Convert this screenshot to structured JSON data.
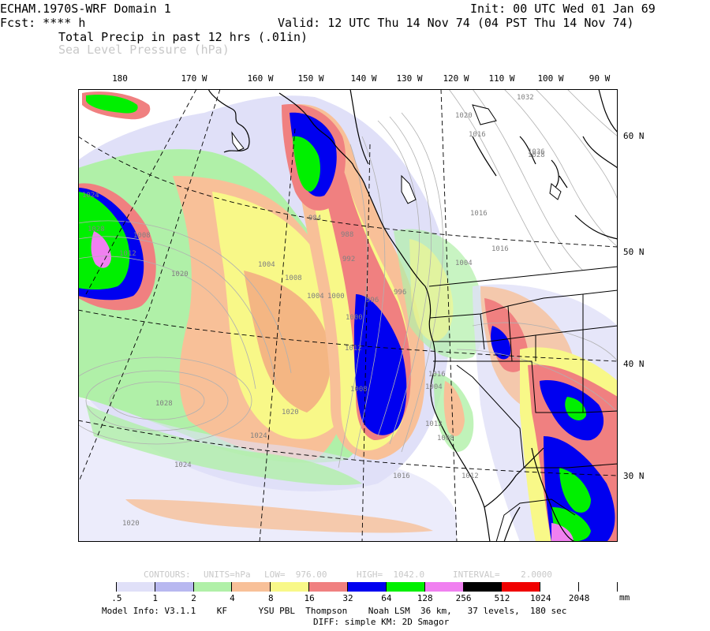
{
  "header": {
    "model": "ECHAM.1970S-WRF Domain 1",
    "init": "Init: 00 UTC Wed 01 Jan 69",
    "fcst": "Fcst: **** h",
    "valid": "Valid: 12 UTC Thu 14 Nov 74 (04 PST Thu 14 Nov 74)",
    "field1": "Total Precip in past 12 hrs (.01in)",
    "field2": "Sea Level Pressure (hPa)"
  },
  "lon_labels": [
    "180",
    "170 W",
    "160 W",
    "150 W",
    "140 W",
    "130 W",
    "120 W",
    "110 W",
    "100 W",
    "90 W"
  ],
  "lat_labels": [
    "60 N",
    "50 N",
    "40 N",
    "30 N"
  ],
  "pressure_labels": [
    "1032",
    "1020",
    "1024",
    "1028",
    "1036",
    "1016",
    "1016",
    "1004",
    "1016",
    "1008",
    "1004",
    "1012",
    "1020",
    "1008",
    "1004",
    "1000",
    "996",
    "992",
    "988",
    "984",
    "1000",
    "996",
    "1004",
    "1008",
    "1012",
    "1020",
    "1024",
    "1028",
    "1024",
    "1020",
    "1012",
    "1016",
    "1012",
    "1016",
    "1008",
    "1028"
  ],
  "contour_info": {
    "contours": "CONTOURS:",
    "units": "UNITS=hPa",
    "low": "LOW=  976.00",
    "high": "HIGH=  1042.0",
    "interval": "INTERVAL=    2.0000"
  },
  "colorbar": {
    "labels": [
      ".5",
      "1",
      "2",
      "4",
      "8",
      "16",
      "32",
      "64",
      "128",
      "256",
      "512",
      "1024",
      "2048"
    ],
    "unit": "mm",
    "colors": [
      "#ffffff",
      "#e0e0f8",
      "#b8b8f0",
      "#b0f0a8",
      "#f8c098",
      "#f8f888",
      "#f08080",
      "#0000f0",
      "#00f000",
      "#f080f0",
      "#000000",
      "#f00000",
      "#ffffff",
      "#ffffff"
    ]
  },
  "footer": {
    "line1": "Model Info: V3.1.1    KF      YSU PBL  Thompson    Noah LSM  36 km,   37 levels,  180 sec",
    "line2": "DIFF: simple KM: 2D Smagor"
  }
}
